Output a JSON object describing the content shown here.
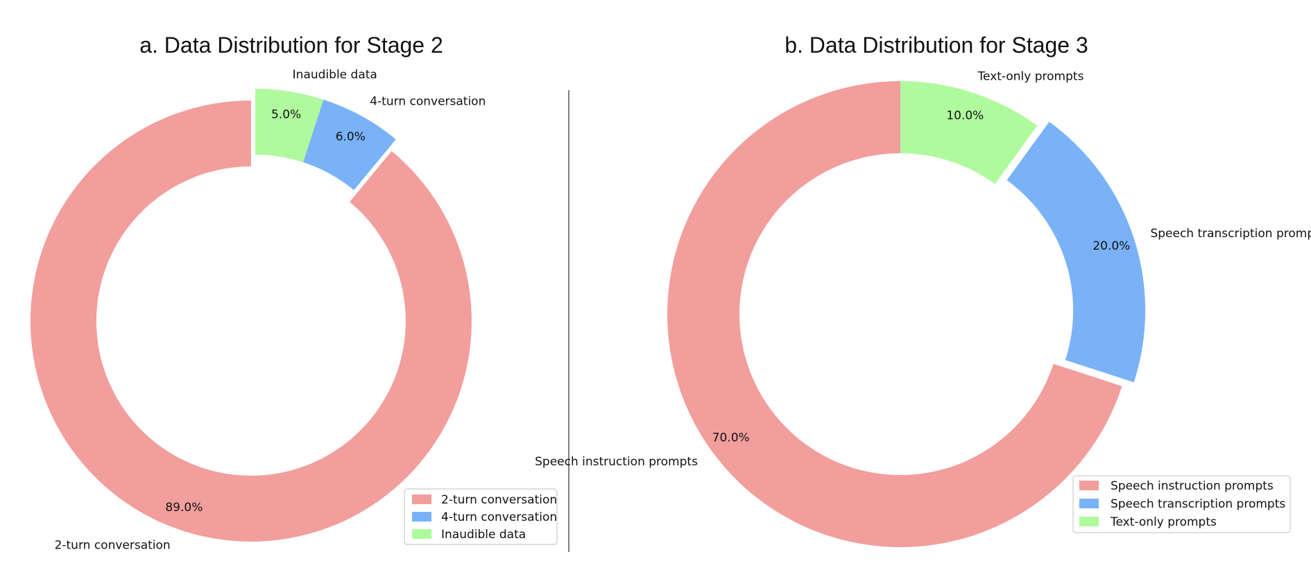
{
  "chart_data": [
    {
      "type": "pie",
      "title": "a. Data Distribution for Stage 2",
      "categories": [
        "2-turn conversation",
        "4-turn conversation",
        "Inaudible data"
      ],
      "values": [
        89.0,
        6.0,
        5.0
      ],
      "value_labels": [
        "89.0%",
        "6.0%",
        "5.0%"
      ],
      "colors": [
        "#f29e9c",
        "#7ab2f8",
        "#b0fa9e"
      ],
      "exploded": [
        true,
        false,
        false
      ],
      "donut": true,
      "start_angle_deg": 90,
      "direction": "counterclockwise",
      "legend": {
        "placement": "lower-right",
        "entries": [
          "2-turn conversation",
          "4-turn conversation",
          "Inaudible data"
        ]
      }
    },
    {
      "type": "pie",
      "title": "b. Data Distribution for Stage 3",
      "categories": [
        "Speech instruction prompts",
        "Speech transcription prompts",
        "Text-only prompts"
      ],
      "values": [
        70.0,
        20.0,
        10.0
      ],
      "value_labels": [
        "70.0%",
        "20.0%",
        "10.0%"
      ],
      "colors": [
        "#f29e9c",
        "#7ab2f8",
        "#b0fa9e"
      ],
      "exploded": [
        false,
        true,
        false
      ],
      "donut": true,
      "start_angle_deg": 90,
      "direction": "counterclockwise",
      "legend": {
        "placement": "lower-right",
        "entries": [
          "Speech instruction prompts",
          "Speech transcription prompts",
          "Text-only prompts"
        ]
      }
    }
  ]
}
